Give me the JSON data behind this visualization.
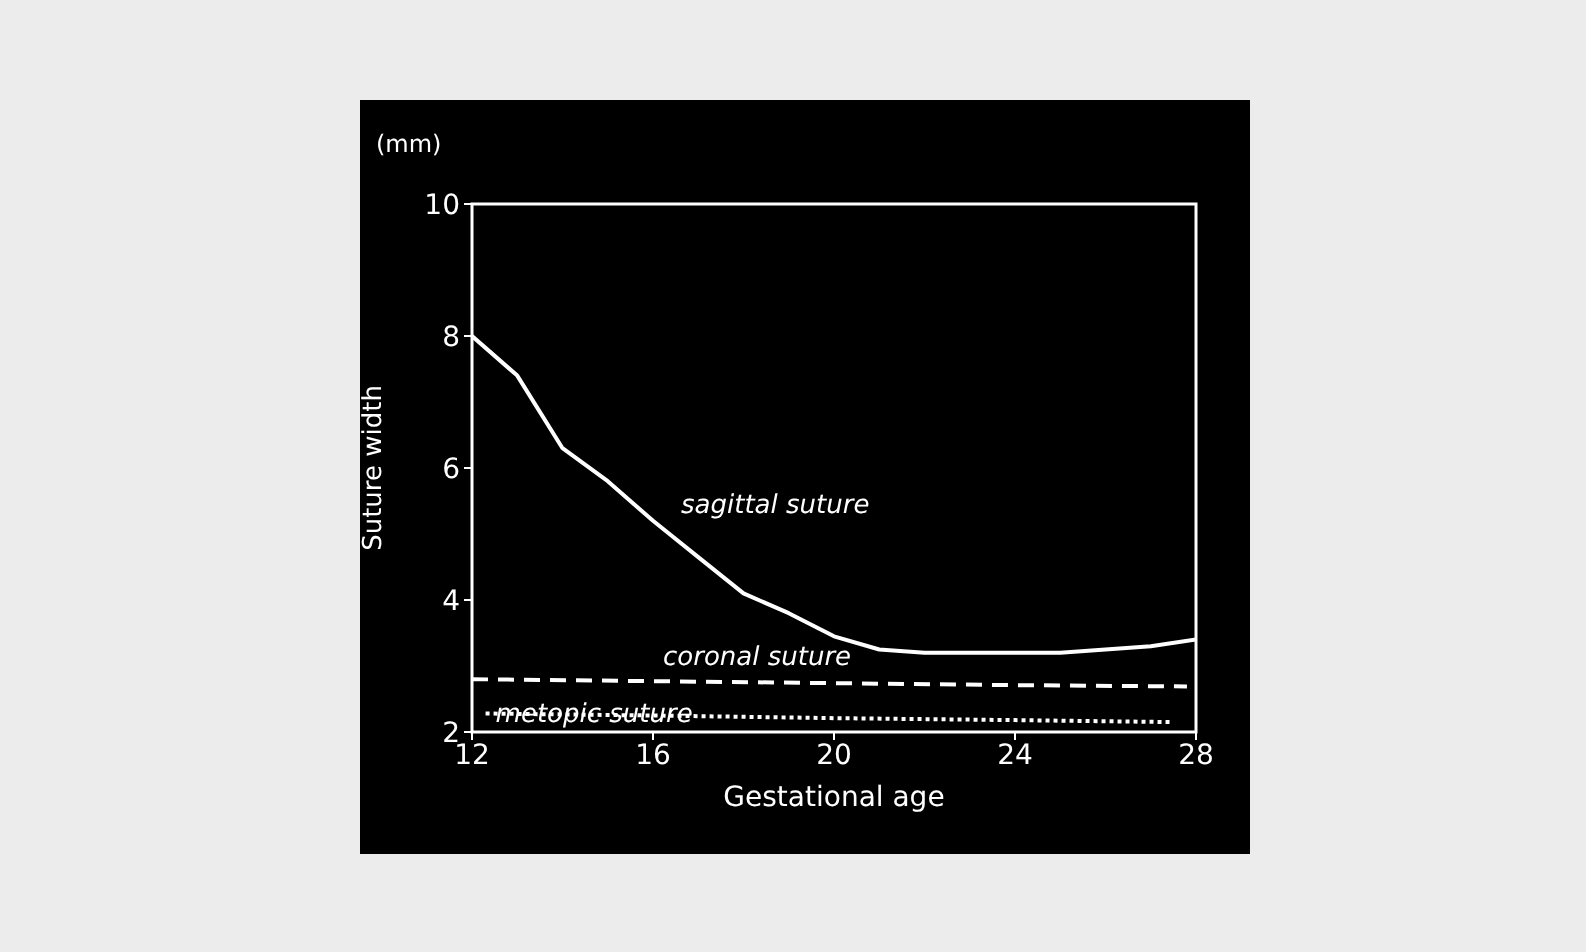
{
  "chart_data": {
    "type": "line",
    "xlabel": "Gestational age",
    "ylabel": "Suture width",
    "annotations": [
      "(mm)"
    ],
    "xlim": [
      12,
      28
    ],
    "xticks": [
      12,
      16,
      20,
      24,
      28
    ],
    "ylim": [
      2,
      10
    ],
    "yticks": [
      2,
      4,
      6,
      8,
      10
    ],
    "marker": "none",
    "series": [
      {
        "name": "sagittal suture",
        "color": "#ffffff",
        "line_style": "solid",
        "x": [
          12,
          13,
          14,
          15,
          16,
          17,
          18,
          19,
          20,
          21,
          22,
          23,
          24,
          25,
          26,
          27,
          28
        ],
        "values": [
          8.0,
          7.4,
          6.3,
          5.8,
          5.2,
          4.65,
          4.1,
          3.8,
          3.45,
          3.25,
          3.2,
          3.2,
          3.2,
          3.2,
          3.25,
          3.3,
          3.4
        ]
      },
      {
        "name": "coronal suture",
        "color": "#ffffff",
        "line_style": "dashed",
        "x": [
          12,
          16,
          20,
          24,
          27.8
        ],
        "values": [
          2.8,
          2.77,
          2.74,
          2.71,
          2.69
        ]
      },
      {
        "name": "metopic suture",
        "color": "#ffffff",
        "line_style": "dotted",
        "x": [
          12.3,
          16,
          20,
          24,
          27.5
        ],
        "values": [
          2.28,
          2.25,
          2.21,
          2.18,
          2.15
        ]
      }
    ]
  }
}
